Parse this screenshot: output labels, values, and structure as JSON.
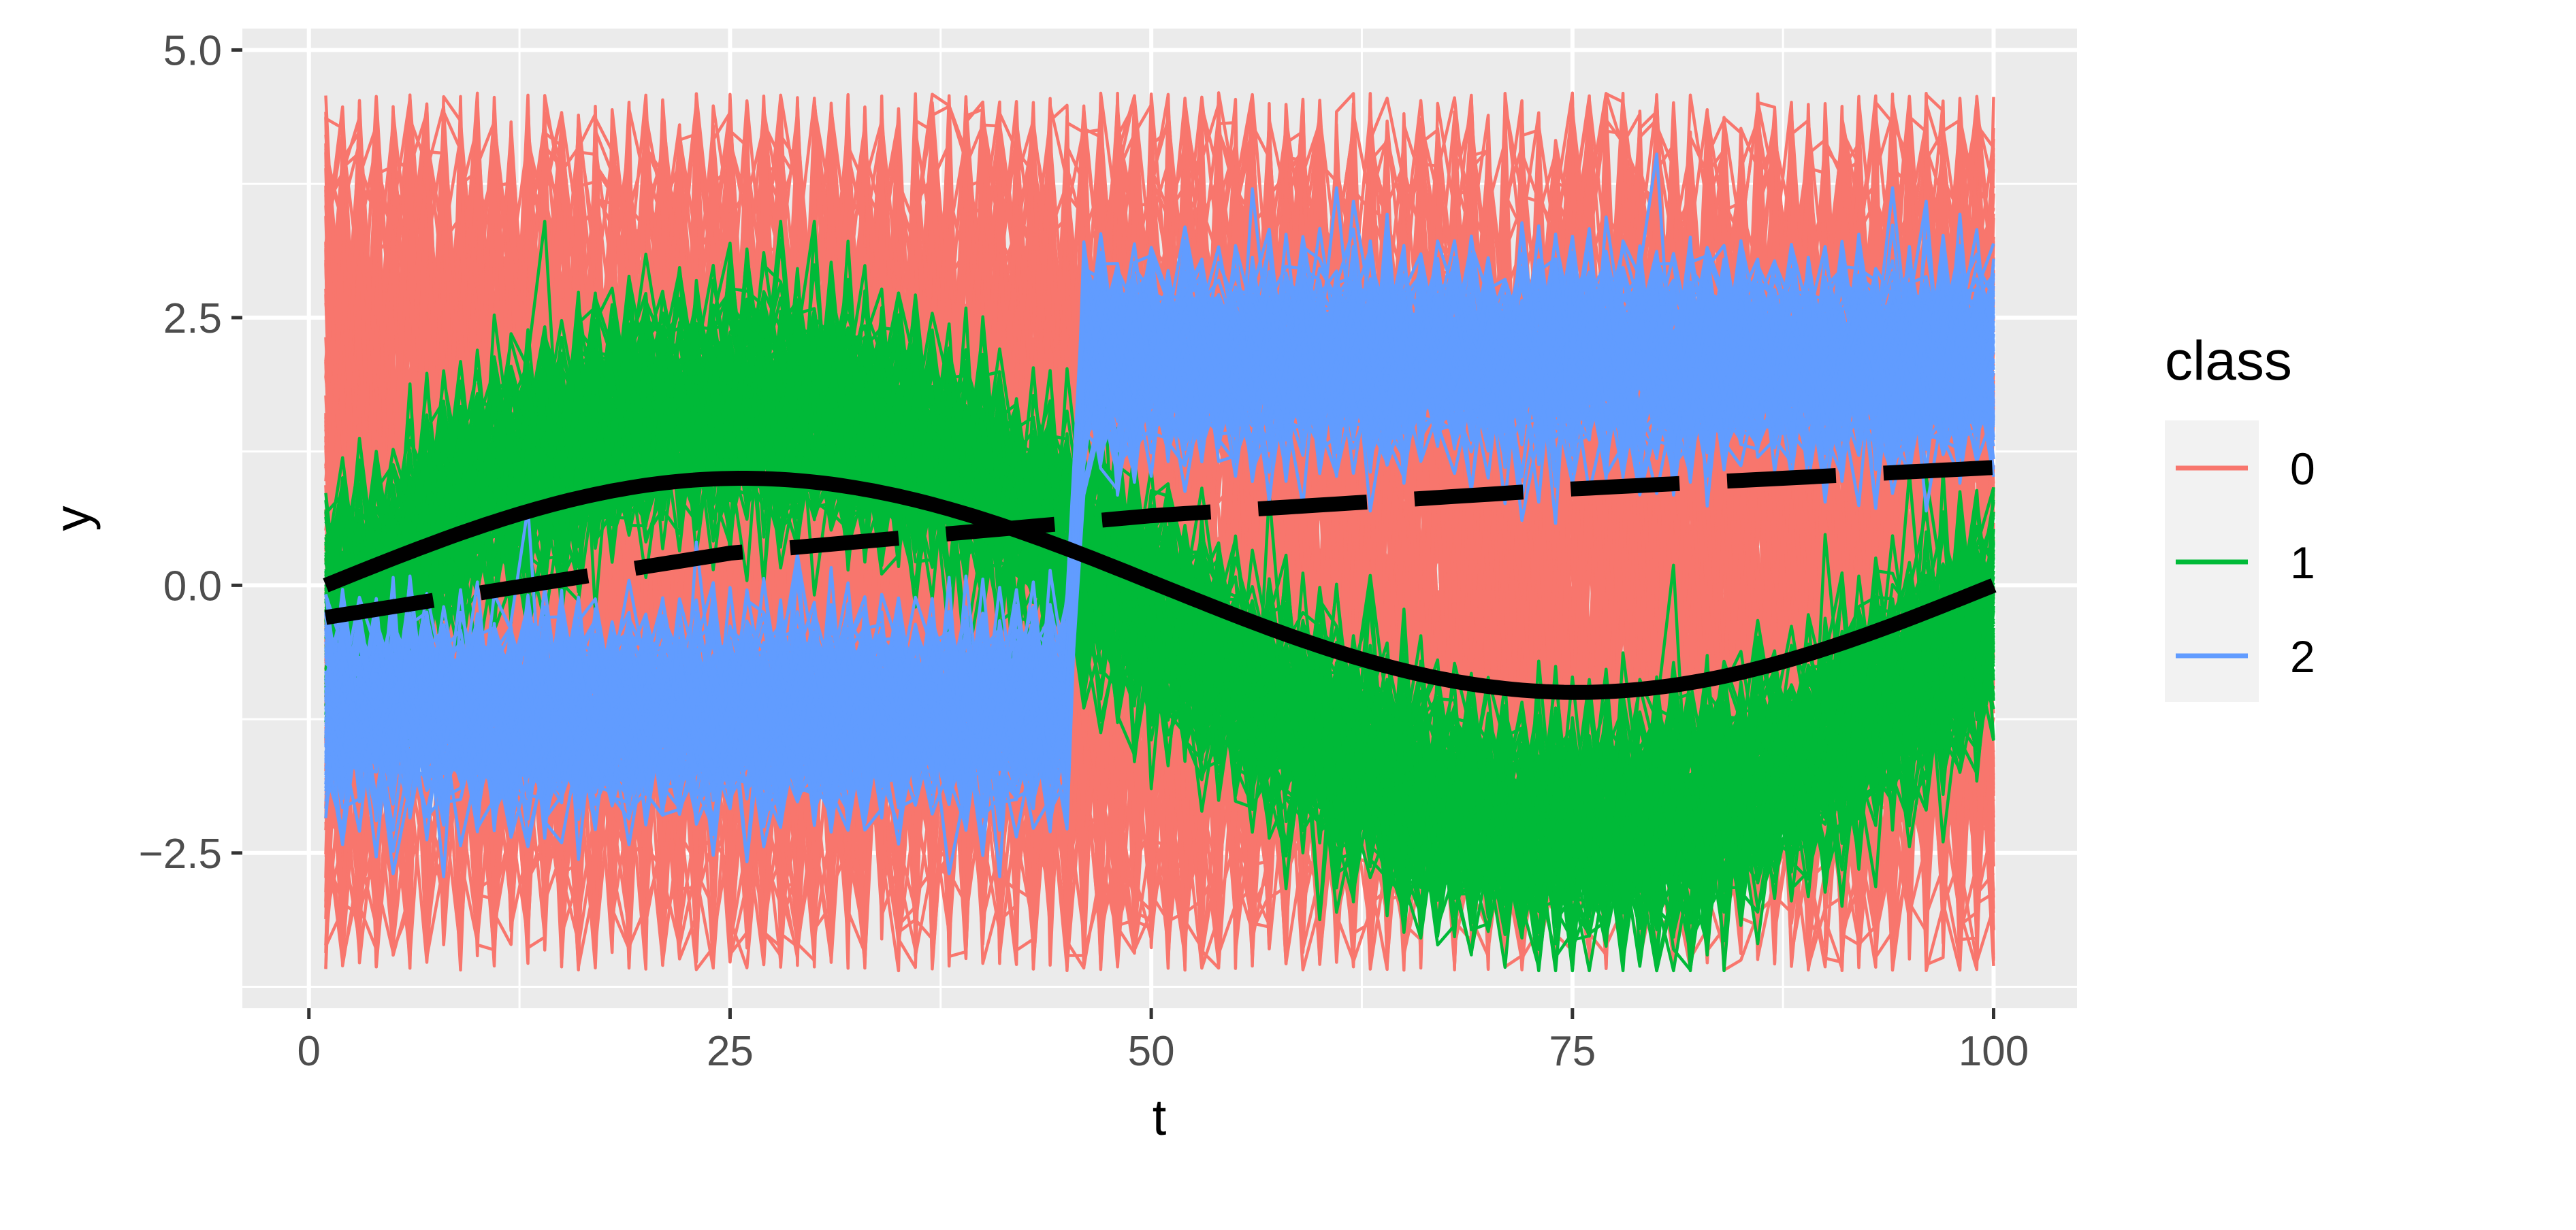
{
  "chart_data": {
    "type": "line",
    "title": "",
    "xlabel": "t",
    "ylabel": "y",
    "xlim": [
      -3.95,
      104.95
    ],
    "ylim": [
      -3.95,
      5.2
    ],
    "x_ticks": [
      0,
      25,
      50,
      75,
      100
    ],
    "x_tick_labels": [
      "0",
      "25",
      "50",
      "75",
      "100"
    ],
    "y_ticks": [
      -2.5,
      0.0,
      2.5,
      5.0
    ],
    "y_tick_labels": [
      "−2.5",
      "0.0",
      "2.5",
      "5.0"
    ],
    "grid": true,
    "legend": {
      "title": "class",
      "position": "right",
      "entries": [
        {
          "label": "0",
          "color": "#F8766D"
        },
        {
          "label": "1",
          "color": "#00BA38"
        },
        {
          "label": "2",
          "color": "#619CFF"
        }
      ]
    },
    "x_range": [
      1,
      100
    ],
    "series": [
      {
        "class": "0",
        "color": "#F8766D",
        "line_count": 120,
        "description_values": {
          "t_start": 1,
          "t_end": 100,
          "band_low": -3.6,
          "band_high": 4.6,
          "mean": 0
        }
      },
      {
        "class": "1",
        "color": "#00BA38",
        "line_count": 120,
        "mean_function": "2*sin(2*pi*t/100) - 0.3 (approx)",
        "band_halfwidth": 1.1,
        "noise_max": 3.4,
        "noise_min": -3.6
      },
      {
        "class": "2",
        "color": "#619CFF",
        "line_count": 120,
        "mean_before_t45": -1.2,
        "mean_after_t45": 2.1,
        "band_halfwidth": 0.9,
        "noise_max": 4.7,
        "noise_min": -3.1
      }
    ],
    "reference_lines": [
      {
        "name": "",
        "style": "solid",
        "color": "#000000",
        "function": "sin(2*pi*(t-1)/99)",
        "points": [
          [
            1,
            0
          ],
          [
            25,
            1
          ],
          [
            50,
            0
          ],
          [
            75,
            -1
          ],
          [
            100,
            0
          ]
        ]
      },
      {
        "name": "",
        "style": "dashed",
        "color": "#000000",
        "points": [
          [
            1,
            -0.3
          ],
          [
            25,
            0.3
          ],
          [
            50,
            0.65
          ],
          [
            75,
            0.9
          ],
          [
            100,
            1.1
          ]
        ]
      }
    ]
  }
}
